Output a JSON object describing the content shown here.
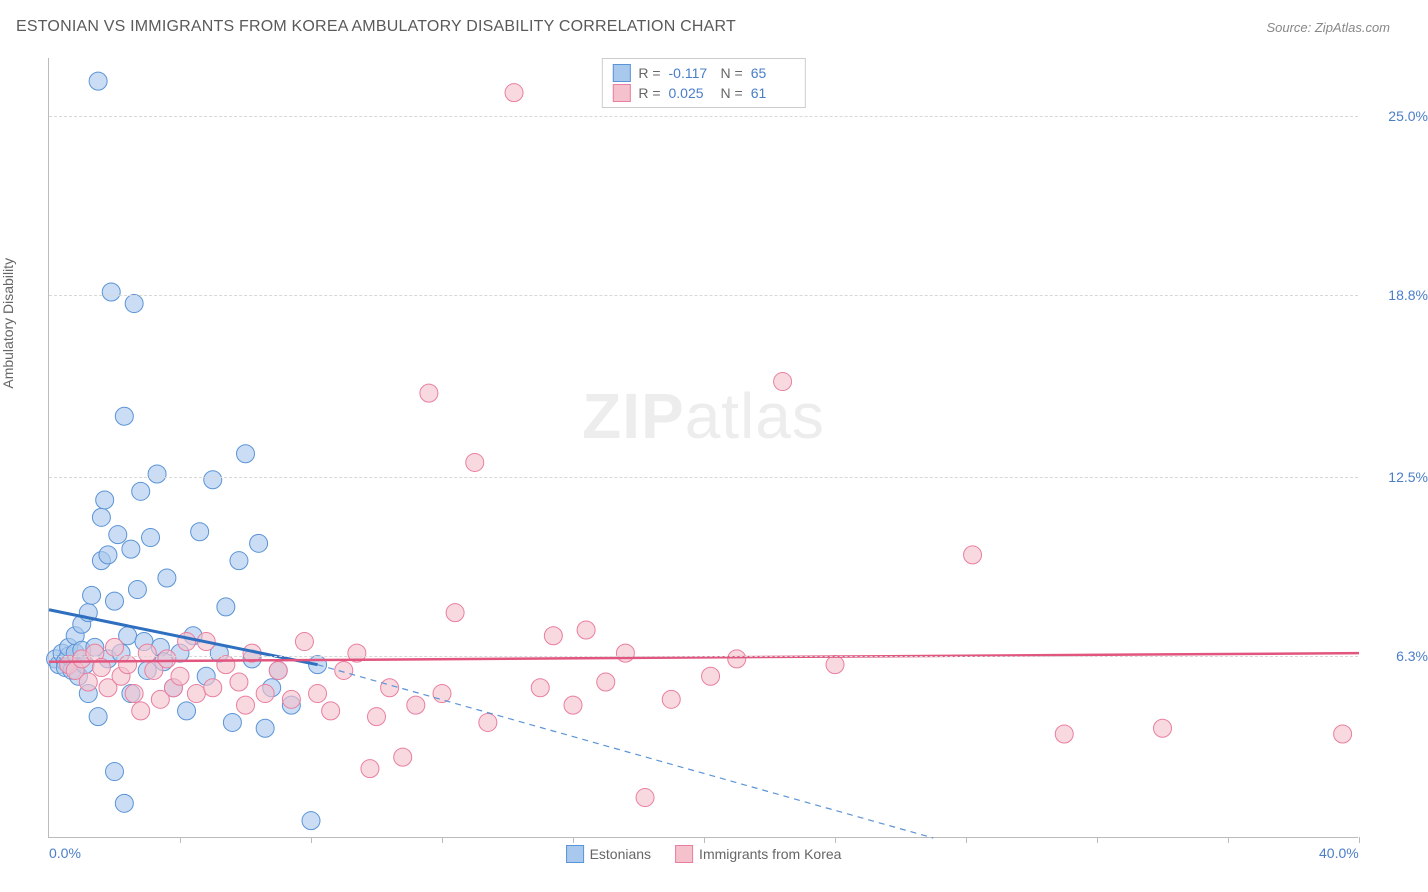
{
  "header": {
    "title": "ESTONIAN VS IMMIGRANTS FROM KOREA AMBULATORY DISABILITY CORRELATION CHART",
    "source": "Source: ZipAtlas.com"
  },
  "axes": {
    "y_label": "Ambulatory Disability",
    "x_min": 0.0,
    "x_max": 40.0,
    "y_min": 0.0,
    "y_max": 27.0,
    "y_ticks": [
      {
        "v": 6.3,
        "label": "6.3%"
      },
      {
        "v": 12.5,
        "label": "12.5%"
      },
      {
        "v": 18.8,
        "label": "18.8%"
      },
      {
        "v": 25.0,
        "label": "25.0%"
      }
    ],
    "x_tick_marks": [
      4,
      8,
      12,
      16,
      20,
      24,
      28,
      32,
      36,
      40
    ],
    "x_tick_labels": [
      {
        "v": 0.0,
        "label": "0.0%"
      },
      {
        "v": 40.0,
        "label": "40.0%"
      }
    ],
    "grid_color": "#d8d8d8",
    "axis_color": "#bbbbbb",
    "tick_label_color": "#4a7ec9"
  },
  "watermark": {
    "zip": "ZIP",
    "atlas": "atlas",
    "color": "#ededed"
  },
  "series": [
    {
      "id": "estonians",
      "label": "Estonians",
      "fill": "#a9c8ee",
      "stroke": "#5b94d6",
      "opacity": 0.62,
      "marker_r": 9,
      "R": "-0.117",
      "N": "65",
      "trend_solid": {
        "x1": 0.0,
        "y1": 7.9,
        "x2": 8.2,
        "y2": 6.0,
        "color": "#2f6fc0",
        "width": 3
      },
      "trend_dashed": {
        "x1": 8.2,
        "y1": 6.0,
        "x2": 27.0,
        "y2": 0.0,
        "color": "#5b94d6",
        "width": 1.2,
        "dash": "6 5"
      },
      "points": [
        [
          0.2,
          6.2
        ],
        [
          0.3,
          6.0
        ],
        [
          0.4,
          6.4
        ],
        [
          0.5,
          6.1
        ],
        [
          0.5,
          5.9
        ],
        [
          0.6,
          6.3
        ],
        [
          0.6,
          6.6
        ],
        [
          0.7,
          5.8
        ],
        [
          0.8,
          6.4
        ],
        [
          0.8,
          7.0
        ],
        [
          0.9,
          5.6
        ],
        [
          1.0,
          6.5
        ],
        [
          1.0,
          7.4
        ],
        [
          1.1,
          6.0
        ],
        [
          1.2,
          7.8
        ],
        [
          1.2,
          5.0
        ],
        [
          1.3,
          8.4
        ],
        [
          1.4,
          6.6
        ],
        [
          1.5,
          4.2
        ],
        [
          1.5,
          26.2
        ],
        [
          1.6,
          9.6
        ],
        [
          1.6,
          11.1
        ],
        [
          1.7,
          11.7
        ],
        [
          1.8,
          6.2
        ],
        [
          1.8,
          9.8
        ],
        [
          1.9,
          18.9
        ],
        [
          2.0,
          8.2
        ],
        [
          2.0,
          2.3
        ],
        [
          2.1,
          10.5
        ],
        [
          2.2,
          6.4
        ],
        [
          2.3,
          14.6
        ],
        [
          2.3,
          1.2
        ],
        [
          2.4,
          7.0
        ],
        [
          2.5,
          10.0
        ],
        [
          2.5,
          5.0
        ],
        [
          2.6,
          18.5
        ],
        [
          2.7,
          8.6
        ],
        [
          2.8,
          12.0
        ],
        [
          2.9,
          6.8
        ],
        [
          3.0,
          5.8
        ],
        [
          3.1,
          10.4
        ],
        [
          3.3,
          12.6
        ],
        [
          3.4,
          6.6
        ],
        [
          3.5,
          6.1
        ],
        [
          3.6,
          9.0
        ],
        [
          3.8,
          5.2
        ],
        [
          4.0,
          6.4
        ],
        [
          4.2,
          4.4
        ],
        [
          4.4,
          7.0
        ],
        [
          4.6,
          10.6
        ],
        [
          4.8,
          5.6
        ],
        [
          5.0,
          12.4
        ],
        [
          5.2,
          6.4
        ],
        [
          5.4,
          8.0
        ],
        [
          5.6,
          4.0
        ],
        [
          5.8,
          9.6
        ],
        [
          6.0,
          13.3
        ],
        [
          6.2,
          6.2
        ],
        [
          6.4,
          10.2
        ],
        [
          6.6,
          3.8
        ],
        [
          6.8,
          5.2
        ],
        [
          7.0,
          5.8
        ],
        [
          7.4,
          4.6
        ],
        [
          8.0,
          0.6
        ],
        [
          8.2,
          6.0
        ]
      ]
    },
    {
      "id": "korea",
      "label": "Immigrants from Korea",
      "fill": "#f5c1cd",
      "stroke": "#e97fa0",
      "opacity": 0.62,
      "marker_r": 9,
      "R": "0.025",
      "N": "61",
      "trend_solid": {
        "x1": 0.0,
        "y1": 6.1,
        "x2": 40.0,
        "y2": 6.4,
        "color": "#e2557f",
        "width": 2.5
      },
      "points": [
        [
          0.6,
          6.0
        ],
        [
          0.8,
          5.8
        ],
        [
          1.0,
          6.2
        ],
        [
          1.2,
          5.4
        ],
        [
          1.4,
          6.4
        ],
        [
          1.6,
          5.9
        ],
        [
          1.8,
          5.2
        ],
        [
          2.0,
          6.6
        ],
        [
          2.2,
          5.6
        ],
        [
          2.4,
          6.0
        ],
        [
          2.6,
          5.0
        ],
        [
          2.8,
          4.4
        ],
        [
          3.0,
          6.4
        ],
        [
          3.2,
          5.8
        ],
        [
          3.4,
          4.8
        ],
        [
          3.6,
          6.2
        ],
        [
          3.8,
          5.2
        ],
        [
          4.0,
          5.6
        ],
        [
          4.2,
          6.8
        ],
        [
          4.5,
          5.0
        ],
        [
          4.8,
          6.8
        ],
        [
          5.0,
          5.2
        ],
        [
          5.4,
          6.0
        ],
        [
          5.8,
          5.4
        ],
        [
          6.0,
          4.6
        ],
        [
          6.2,
          6.4
        ],
        [
          6.6,
          5.0
        ],
        [
          7.0,
          5.8
        ],
        [
          7.4,
          4.8
        ],
        [
          7.8,
          6.8
        ],
        [
          8.2,
          5.0
        ],
        [
          8.6,
          4.4
        ],
        [
          9.0,
          5.8
        ],
        [
          9.4,
          6.4
        ],
        [
          9.8,
          2.4
        ],
        [
          10.0,
          4.2
        ],
        [
          10.4,
          5.2
        ],
        [
          10.8,
          2.8
        ],
        [
          11.2,
          4.6
        ],
        [
          11.6,
          15.4
        ],
        [
          12.0,
          5.0
        ],
        [
          12.4,
          7.8
        ],
        [
          13.0,
          13.0
        ],
        [
          13.4,
          4.0
        ],
        [
          14.2,
          25.8
        ],
        [
          15.0,
          5.2
        ],
        [
          15.4,
          7.0
        ],
        [
          16.0,
          4.6
        ],
        [
          16.4,
          7.2
        ],
        [
          17.0,
          5.4
        ],
        [
          17.6,
          6.4
        ],
        [
          18.2,
          1.4
        ],
        [
          19.0,
          4.8
        ],
        [
          20.2,
          5.6
        ],
        [
          21.0,
          6.2
        ],
        [
          22.4,
          15.8
        ],
        [
          24.0,
          6.0
        ],
        [
          28.2,
          9.8
        ],
        [
          31.0,
          3.6
        ],
        [
          34.0,
          3.8
        ],
        [
          39.5,
          3.6
        ]
      ]
    }
  ],
  "stats_legend": {
    "r_label": "R =",
    "n_label": "N ="
  },
  "bottom_legend_labels": [
    "Estonians",
    "Immigrants from Korea"
  ]
}
